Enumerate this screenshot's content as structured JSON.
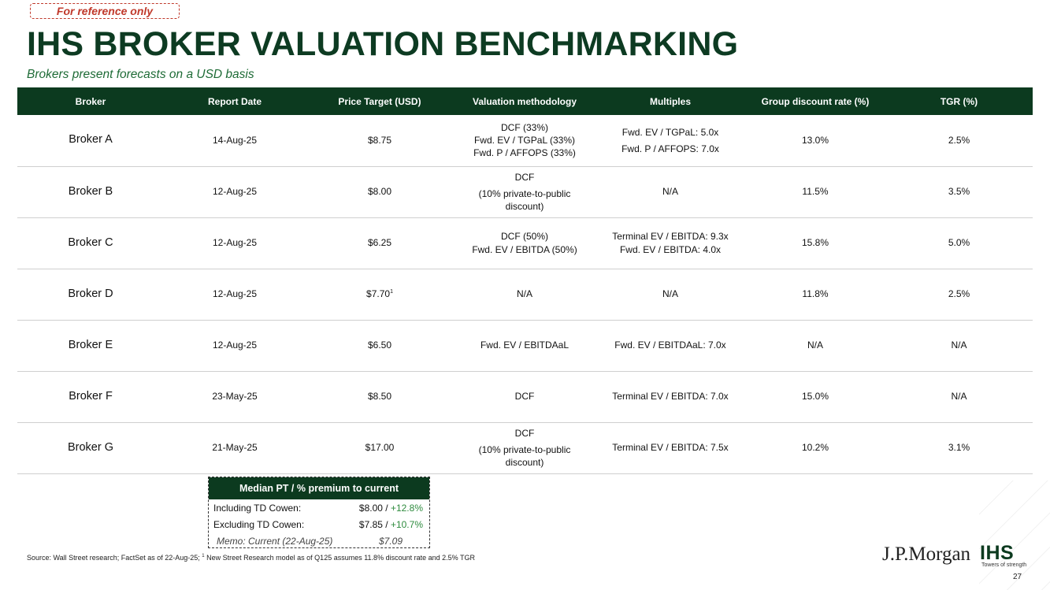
{
  "badge": "For reference only",
  "title": "IHS BROKER VALUATION BENCHMARKING",
  "subtitle": "Brokers present forecasts on a USD basis",
  "table": {
    "headers": [
      "Broker",
      "Report Date",
      "Price Target (USD)",
      "Valuation methodology",
      "Multiples",
      "Group discount rate (%)",
      "TGR (%)"
    ],
    "rows": [
      {
        "broker": "Broker A",
        "date": "14-Aug-25",
        "pt": "$8.75",
        "pt_sup": "",
        "methodology": [
          "DCF (33%)",
          "Fwd. EV / TGPaL (33%)",
          "Fwd. P / AFFOPS (33%)"
        ],
        "multiples": [
          "Fwd. EV / TGPaL: 5.0x",
          "Fwd. P / AFFOPS: 7.0x"
        ],
        "discount": "13.0%",
        "tgr": "2.5%"
      },
      {
        "broker": "Broker B",
        "date": "12-Aug-25",
        "pt": "$8.00",
        "pt_sup": "",
        "methodology": [
          "DCF",
          "(10% private-to-public",
          "discount)"
        ],
        "multiples": [
          "N/A"
        ],
        "discount": "11.5%",
        "tgr": "3.5%"
      },
      {
        "broker": "Broker C",
        "date": "12-Aug-25",
        "pt": "$6.25",
        "pt_sup": "",
        "methodology": [
          "DCF (50%)",
          "Fwd. EV / EBITDA (50%)"
        ],
        "multiples": [
          "Terminal EV / EBITDA: 9.3x",
          "Fwd. EV / EBITDA: 4.0x"
        ],
        "discount": "15.8%",
        "tgr": "5.0%"
      },
      {
        "broker": "Broker D",
        "date": "12-Aug-25",
        "pt": "$7.70",
        "pt_sup": "1",
        "methodology": [
          "N/A"
        ],
        "multiples": [
          "N/A"
        ],
        "discount": "11.8%",
        "tgr": "2.5%"
      },
      {
        "broker": "Broker E",
        "date": "12-Aug-25",
        "pt": "$6.50",
        "pt_sup": "",
        "methodology": [
          "Fwd. EV / EBITDAaL"
        ],
        "multiples": [
          "Fwd. EV / EBITDAaL: 7.0x"
        ],
        "discount": "N/A",
        "tgr": "N/A"
      },
      {
        "broker": "Broker F",
        "date": "23-May-25",
        "pt": "$8.50",
        "pt_sup": "",
        "methodology": [
          "DCF"
        ],
        "multiples": [
          "Terminal EV / EBITDA: 7.0x"
        ],
        "discount": "15.0%",
        "tgr": "N/A"
      },
      {
        "broker": "Broker G",
        "date": "21-May-25",
        "pt": "$17.00",
        "pt_sup": "",
        "methodology": [
          "DCF",
          "(10% private-to-public",
          "discount)"
        ],
        "multiples": [
          "Terminal EV / EBITDA: 7.5x"
        ],
        "discount": "10.2%",
        "tgr": "3.1%"
      }
    ]
  },
  "median": {
    "header": "Median PT / % premium to current",
    "incl_label": "Including TD Cowen:",
    "incl_value": "$8.00",
    "incl_sep": " / ",
    "incl_premium": "+12.8%",
    "excl_label": "Excluding TD Cowen:",
    "excl_value": "$7.85",
    "excl_sep": " / ",
    "excl_premium": "+10.7%",
    "memo_label": "Memo: Current (22-Aug-25)",
    "memo_value": "$7.09"
  },
  "source_prefix": "Source: Wall Street research; FactSet as of 22-Aug-25; ",
  "source_sup": "1",
  "source_suffix": " New Street Research model as of Q125 assumes 11.8% discount rate and 2.5% TGR",
  "logo_jpm": "J.P.Morgan",
  "logo_ihs": "IHS",
  "logo_tagline": "Towers of strength",
  "page_number": "27",
  "colors": {
    "brand_green": "#0c3a1f",
    "subtitle_green": "#1e6b36",
    "premium_green": "#2e8b3e",
    "badge_red": "#c0392b"
  }
}
